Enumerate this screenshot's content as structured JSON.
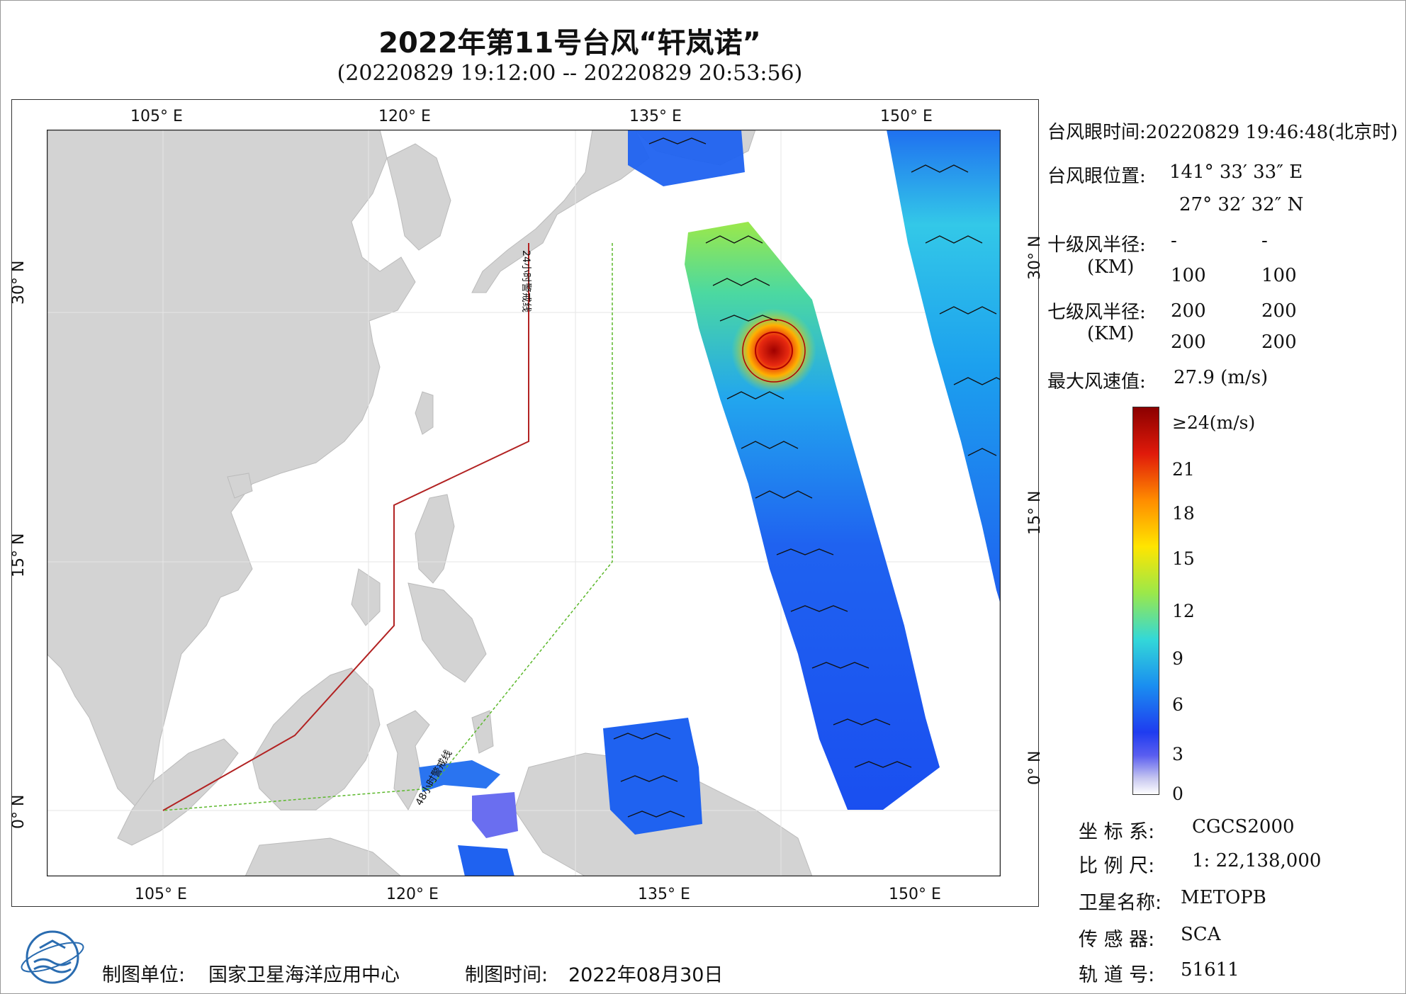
{
  "header": {
    "title": "2022年第11号台风“轩岚诺”",
    "subtitle": "(20220829 19:12:00 -- 20220829 20:53:56)"
  },
  "map": {
    "lon_top_labels": [
      "105° E",
      "120° E",
      "135° E",
      "150° E"
    ],
    "lon_bottom_labels": [
      "105° E",
      "120° E",
      "135° E",
      "150° E"
    ],
    "lat_labels": [
      "30° N",
      "15° N",
      "0° N"
    ],
    "warning_24h": "24小时警戒线",
    "warning_48h": "48小时警戒线",
    "colors": {
      "land": "#d3d3d3",
      "ocean": "#ffffff",
      "line_24h": "#b22222",
      "line_48h": "#5cb82c"
    }
  },
  "info": {
    "eye_time_label": "台风眼时间:",
    "eye_time_value": "20220829 19:46:48(北京时)",
    "eye_pos_label": "台风眼位置:",
    "eye_lon": "141° 33′ 33″ E",
    "eye_lat": "27° 32′ 32″ N",
    "r10_label": "十级风半径:",
    "r10_unit": "(KM)",
    "r10_row1": [
      "-",
      "-"
    ],
    "r10_row2": [
      "100",
      "100"
    ],
    "r7_label": "七级风半径:",
    "r7_unit": "(KM)",
    "r7_row1": [
      "200",
      "200"
    ],
    "r7_row2": [
      "200",
      "200"
    ],
    "max_label": "最大风速值:",
    "max_value": "27.9 (m/s)"
  },
  "colorbar": {
    "labels": [
      "≥24(m/s)",
      "21",
      "18",
      "15",
      "12",
      "9",
      "6",
      "3",
      "0"
    ]
  },
  "meta": {
    "crs_label": "坐 标 系:",
    "crs_value": "CGCS2000",
    "scale_label": "比 例 尺:",
    "scale_value": "1: 22,138,000",
    "sat_label": "卫星名称:",
    "sat_value": "METOPB",
    "sensor_label": "传 感 器:",
    "sensor_value": "SCA",
    "orbit_label": "轨 道 号:",
    "orbit_value": "51611"
  },
  "footer": {
    "maker_label": "制图单位:",
    "maker_value": "国家卫星海洋应用中心",
    "time_label": "制图时间:",
    "time_value": "2022年08月30日"
  }
}
